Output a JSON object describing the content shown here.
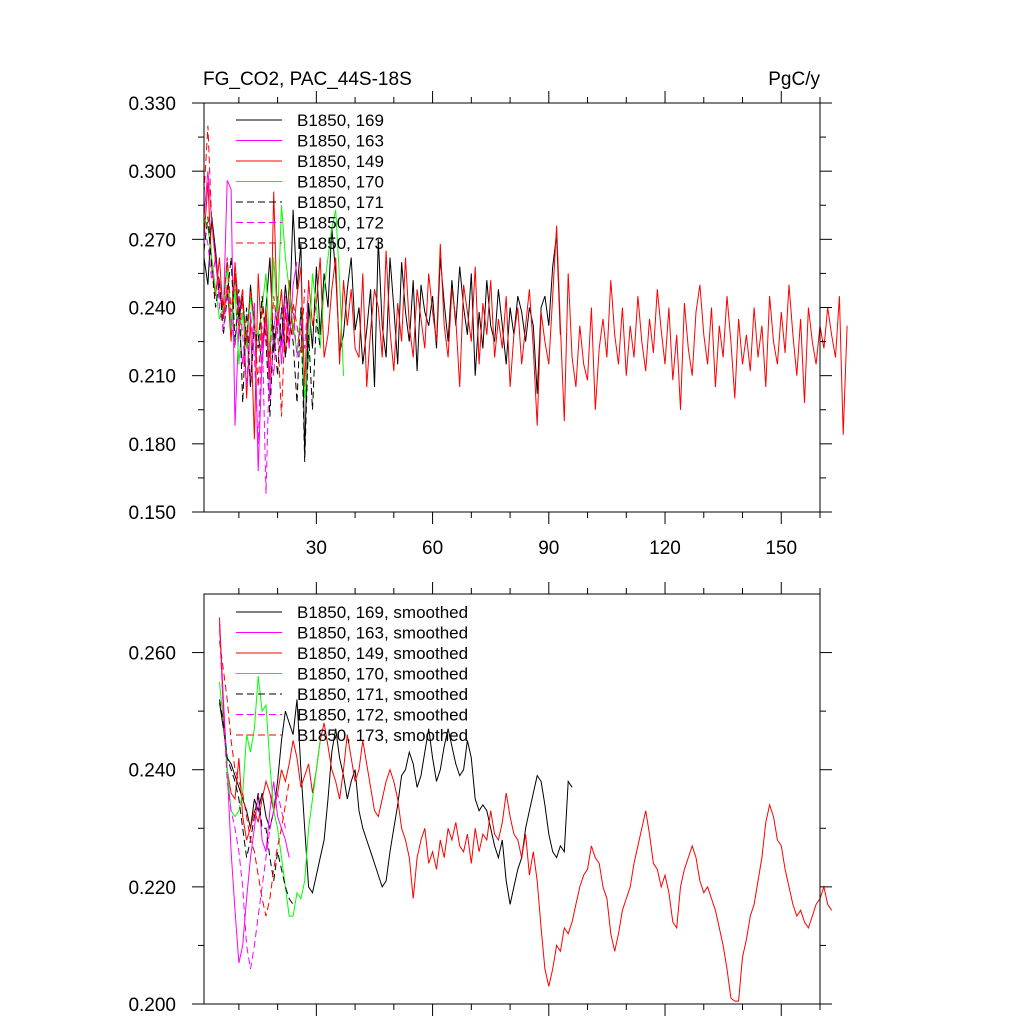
{
  "chart_data": [
    {
      "type": "line",
      "title": "FG_CO2, PAC_44S-18S",
      "units": "PgC/y",
      "xlim": [
        1,
        160
      ],
      "ylim": [
        0.15,
        0.33
      ],
      "xticks": [
        30,
        60,
        90,
        120,
        150
      ],
      "xtick_labels": [
        "30",
        "60",
        "90",
        "120",
        "150"
      ],
      "yticks": [
        0.15,
        0.18,
        0.21,
        0.24,
        0.27,
        0.3,
        0.33
      ],
      "ytick_labels": [
        "0.150",
        "0.180",
        "0.210",
        "0.240",
        "0.270",
        "0.300",
        "0.330"
      ],
      "legend_position": "top-left",
      "series": [
        {
          "name": "B1850, 169",
          "color": "#000000",
          "dash": "solid",
          "start": 1,
          "values": [
            0.262,
            0.25,
            0.28,
            0.265,
            0.245,
            0.24,
            0.26,
            0.23,
            0.255,
            0.235,
            0.245,
            0.222,
            0.25,
            0.23,
            0.228,
            0.215,
            0.24,
            0.262,
            0.22,
            0.238,
            0.225,
            0.25,
            0.232,
            0.283,
            0.248,
            0.268,
            0.175,
            0.242,
            0.222,
            0.258,
            0.228,
            0.255,
            0.24,
            0.275,
            0.255,
            0.22,
            0.228,
            0.248,
            0.262,
            0.23,
            0.24,
            0.215,
            0.23,
            0.248,
            0.205,
            0.27,
            0.232,
            0.218,
            0.262,
            0.24,
            0.215,
            0.26,
            0.238,
            0.225,
            0.252,
            0.212,
            0.25,
            0.238,
            0.232,
            0.245,
            0.222,
            0.262,
            0.242,
            0.225,
            0.252,
            0.232,
            0.258,
            0.24,
            0.228,
            0.255,
            0.21,
            0.238,
            0.222,
            0.252,
            0.232,
            0.225,
            0.248,
            0.232,
            0.215,
            0.24,
            0.228,
            0.245,
            0.238,
            0.225,
            0.24,
            0.232,
            0.202,
            0.24,
            0.245,
            0.232,
            0.258,
            0.272,
            0.228
          ]
        },
        {
          "name": "B1850, 163",
          "color": "#ff00ff",
          "dash": "solid",
          "start": 1,
          "values": [
            0.28,
            0.3,
            0.278,
            0.26,
            0.245,
            0.238,
            0.296,
            0.292,
            0.188,
            0.232,
            0.215,
            0.23,
            0.205,
            0.242,
            0.168,
            0.218,
            0.235,
            0.2,
            0.23,
            0.245,
            0.215,
            0.24,
            0.222,
            0.25,
            0.26
          ]
        },
        {
          "name": "B1850, 149",
          "color": "#ff0000",
          "dash": "solid",
          "start": 1,
          "values": [
            0.27,
            0.295,
            0.258,
            0.245,
            0.262,
            0.235,
            0.25,
            0.225,
            0.26,
            0.238,
            0.248,
            0.2,
            0.235,
            0.182,
            0.255,
            0.222,
            0.24,
            0.208,
            0.291,
            0.232,
            0.248,
            0.218,
            0.252,
            0.228,
            0.245,
            0.258,
            0.205,
            0.252,
            0.232,
            0.242,
            0.262,
            0.218,
            0.228,
            0.248,
            0.262,
            0.215,
            0.252,
            0.232,
            0.248,
            0.222,
            0.218,
            0.255,
            0.205,
            0.23,
            0.248,
            0.24,
            0.218,
            0.265,
            0.23,
            0.212,
            0.242,
            0.225,
            0.262,
            0.232,
            0.218,
            0.248,
            0.235,
            0.222,
            0.255,
            0.238,
            0.225,
            0.268,
            0.232,
            0.218,
            0.248,
            0.235,
            0.205,
            0.25,
            0.238,
            0.225,
            0.258,
            0.215,
            0.242,
            0.228,
            0.252,
            0.218,
            0.235,
            0.222,
            0.245,
            0.205,
            0.228,
            0.24,
            0.215,
            0.232,
            0.248,
            0.222,
            0.188,
            0.238,
            0.225,
            0.215,
            0.245,
            0.276,
            0.232,
            0.19,
            0.255,
            0.218,
            0.205,
            0.232,
            0.215,
            0.208,
            0.24,
            0.195,
            0.222,
            0.235,
            0.218,
            0.252,
            0.228,
            0.215,
            0.24,
            0.21,
            0.232,
            0.218,
            0.245,
            0.225,
            0.212,
            0.235,
            0.22,
            0.248,
            0.23,
            0.215,
            0.24,
            0.208,
            0.228,
            0.195,
            0.242,
            0.222,
            0.21,
            0.238,
            0.25,
            0.228,
            0.215,
            0.24,
            0.205,
            0.232,
            0.218,
            0.245,
            0.225,
            0.2,
            0.235,
            0.215,
            0.228,
            0.212,
            0.24,
            0.218,
            0.232,
            0.205,
            0.245,
            0.225,
            0.215,
            0.238,
            0.22,
            0.25,
            0.228,
            0.21,
            0.235,
            0.198,
            0.24,
            0.225,
            0.215,
            0.232,
            0.222,
            0.24,
            0.228,
            0.218,
            0.245,
            0.184,
            0.232
          ]
        },
        {
          "name": "B1850, 170",
          "color": "#00ff00",
          "dash": "solid",
          "start": 1,
          "values": [
            0.28,
            0.275,
            0.262,
            0.248,
            0.235,
            0.24,
            0.258,
            0.23,
            0.248,
            0.215,
            0.238,
            0.222,
            0.245,
            0.23,
            0.228,
            0.24,
            0.255,
            0.218,
            0.262,
            0.235,
            0.285,
            0.262,
            0.248,
            0.232,
            0.22,
            0.238,
            0.2,
            0.218,
            0.255,
            0.24,
            0.222,
            0.248,
            0.262,
            0.275,
            0.283,
            0.252,
            0.21
          ]
        },
        {
          "name": "B1850, 171",
          "color": "#000000",
          "dash": "dashed",
          "start": 1,
          "values": [
            0.265,
            0.28,
            0.258,
            0.24,
            0.252,
            0.228,
            0.245,
            0.262,
            0.225,
            0.248,
            0.198,
            0.24,
            0.205,
            0.232,
            0.222,
            0.245,
            0.225,
            0.192,
            0.232,
            0.21,
            0.24,
            0.218,
            0.235,
            0.225,
            0.198,
            0.24,
            0.172,
            0.228,
            0.195,
            0.235,
            0.222
          ]
        },
        {
          "name": "B1850, 172",
          "color": "#ff00ff",
          "dash": "dashed",
          "start": 1,
          "values": [
            0.275,
            0.268,
            0.252,
            0.262,
            0.24,
            0.23,
            0.248,
            0.235,
            0.222,
            0.245,
            0.228,
            0.205,
            0.238,
            0.218,
            0.18,
            0.232,
            0.158,
            0.225,
            0.21,
            0.238,
            0.222,
            0.245,
            0.228,
            0.24,
            0.218,
            0.235,
            0.222,
            0.25
          ]
        },
        {
          "name": "B1850, 173",
          "color": "#ff0000",
          "dash": "dashed",
          "start": 1,
          "values": [
            0.29,
            0.32,
            0.278,
            0.26,
            0.252,
            0.24,
            0.262,
            0.238,
            0.255,
            0.23,
            0.242,
            0.225,
            0.248,
            0.235,
            0.205,
            0.24,
            0.228,
            0.218,
            0.245,
            0.23,
            0.192,
            0.238,
            0.225,
            0.242,
            0.232,
            0.22,
            0.248
          ]
        }
      ],
      "legend": [
        "B1850, 169",
        "B1850, 163",
        "B1850, 149",
        "B1850, 170",
        "B1850, 171",
        "B1850, 172",
        "B1850, 173"
      ]
    },
    {
      "type": "line",
      "xlim": [
        1,
        160
      ],
      "ylim": [
        0.2,
        0.27
      ],
      "xticks": [
        30,
        60,
        90,
        120,
        150
      ],
      "yticks": [
        0.2,
        0.22,
        0.24,
        0.26
      ],
      "ytick_labels": [
        "0.200",
        "0.220",
        "0.240",
        "0.260"
      ],
      "legend_position": "top-left",
      "series": [
        {
          "name": "B1850, 169, smoothed",
          "color": "#000000",
          "dash": "solid",
          "start": 5,
          "values": [
            0.2515,
            0.247,
            0.242,
            0.241,
            0.239,
            0.237,
            0.235,
            0.233,
            0.23,
            0.235,
            0.233,
            0.236,
            0.232,
            0.23,
            0.233,
            0.238,
            0.245,
            0.25,
            0.248,
            0.246,
            0.252,
            0.24,
            0.23,
            0.22,
            0.219,
            0.222,
            0.225,
            0.228,
            0.235,
            0.243,
            0.247,
            0.242,
            0.239,
            0.235,
            0.238,
            0.24,
            0.233,
            0.23,
            0.228,
            0.226,
            0.224,
            0.222,
            0.22,
            0.221,
            0.226,
            0.23,
            0.234,
            0.239,
            0.24,
            0.243,
            0.241,
            0.237,
            0.239,
            0.243,
            0.247,
            0.242,
            0.238,
            0.24,
            0.244,
            0.247,
            0.244,
            0.241,
            0.239,
            0.24,
            0.245,
            0.242,
            0.235,
            0.233,
            0.234,
            0.233,
            0.23,
            0.227,
            0.225,
            0.228,
            0.221,
            0.217,
            0.22,
            0.223,
            0.225,
            0.23,
            0.233,
            0.236,
            0.239,
            0.238,
            0.234,
            0.229,
            0.226,
            0.225,
            0.227,
            0.226,
            0.238,
            0.237
          ]
        },
        {
          "name": "B1850, 163, smoothed",
          "color": "#ff00ff",
          "dash": "solid",
          "start": 5,
          "values": [
            0.265,
            0.252,
            0.24,
            0.226,
            0.216,
            0.207,
            0.21,
            0.218,
            0.225,
            0.23,
            0.236,
            0.228,
            0.226,
            0.233,
            0.238,
            0.232,
            0.23,
            0.228,
            0.225
          ]
        },
        {
          "name": "B1850, 149, smoothed",
          "color": "#ff0000",
          "dash": "solid",
          "start": 5,
          "values": [
            0.266,
            0.25,
            0.24,
            0.236,
            0.235,
            0.242,
            0.232,
            0.228,
            0.23,
            0.233,
            0.231,
            0.235,
            0.238,
            0.236,
            0.233,
            0.236,
            0.24,
            0.238,
            0.241,
            0.245,
            0.242,
            0.237,
            0.239,
            0.241,
            0.236,
            0.24,
            0.245,
            0.248,
            0.244,
            0.24,
            0.238,
            0.235,
            0.24,
            0.246,
            0.242,
            0.238,
            0.24,
            0.245,
            0.241,
            0.237,
            0.233,
            0.232,
            0.235,
            0.238,
            0.24,
            0.238,
            0.235,
            0.23,
            0.228,
            0.225,
            0.218,
            0.225,
            0.228,
            0.23,
            0.224,
            0.226,
            0.223,
            0.228,
            0.225,
            0.23,
            0.228,
            0.231,
            0.227,
            0.226,
            0.229,
            0.224,
            0.23,
            0.226,
            0.229,
            0.228,
            0.233,
            0.229,
            0.228,
            0.231,
            0.236,
            0.232,
            0.229,
            0.228,
            0.225,
            0.229,
            0.222,
            0.226,
            0.221,
            0.213,
            0.206,
            0.203,
            0.206,
            0.21,
            0.209,
            0.213,
            0.212,
            0.214,
            0.217,
            0.22,
            0.222,
            0.223,
            0.227,
            0.225,
            0.224,
            0.22,
            0.218,
            0.212,
            0.209,
            0.212,
            0.216,
            0.218,
            0.22,
            0.224,
            0.227,
            0.23,
            0.233,
            0.229,
            0.224,
            0.223,
            0.22,
            0.222,
            0.219,
            0.214,
            0.213,
            0.22,
            0.223,
            0.225,
            0.227,
            0.225,
            0.221,
            0.219,
            0.22,
            0.218,
            0.216,
            0.213,
            0.21,
            0.206,
            0.201,
            0.2005,
            0.2005,
            0.208,
            0.211,
            0.215,
            0.217,
            0.221,
            0.225,
            0.231,
            0.234,
            0.232,
            0.228,
            0.227,
            0.223,
            0.22,
            0.217,
            0.215,
            0.216,
            0.214,
            0.213,
            0.215,
            0.217,
            0.218,
            0.22,
            0.217,
            0.216
          ]
        },
        {
          "name": "B1850, 170, smoothed",
          "color": "#00ff00",
          "dash": "solid",
          "start": 5,
          "values": [
            0.255,
            0.248,
            0.24,
            0.233,
            0.232,
            0.233,
            0.236,
            0.246,
            0.243,
            0.247,
            0.256,
            0.25,
            0.251,
            0.241,
            0.233,
            0.23,
            0.225,
            0.22,
            0.215,
            0.215,
            0.219,
            0.218,
            0.221,
            0.23,
            0.235,
            0.24,
            0.245
          ]
        },
        {
          "name": "B1850, 171, smoothed",
          "color": "#000000",
          "dash": "dashed",
          "start": 5,
          "values": [
            0.252,
            0.248,
            0.242,
            0.24,
            0.238,
            0.235,
            0.23,
            0.225,
            0.228,
            0.232,
            0.236,
            0.23,
            0.23,
            0.225,
            0.221,
            0.226,
            0.223,
            0.22,
            0.218,
            0.217
          ]
        },
        {
          "name": "B1850, 172, smoothed",
          "color": "#ff00ff",
          "dash": "dashed",
          "start": 5,
          "values": [
            0.264,
            0.25,
            0.238,
            0.233,
            0.23,
            0.226,
            0.22,
            0.21,
            0.206,
            0.21,
            0.215,
            0.22,
            0.225,
            0.23,
            0.233,
            0.236,
            0.233,
            0.23
          ]
        },
        {
          "name": "B1850, 173, smoothed",
          "color": "#ff0000",
          "dash": "dashed",
          "start": 5,
          "values": [
            0.262,
            0.257,
            0.252,
            0.245,
            0.24,
            0.238,
            0.236,
            0.232,
            0.228,
            0.226,
            0.222,
            0.218,
            0.215,
            0.218,
            0.223,
            0.227,
            0.23,
            0.234,
            0.238
          ]
        }
      ],
      "legend": [
        "B1850, 169, smoothed",
        "B1850, 163, smoothed",
        "B1850, 149, smoothed",
        "B1850, 170, smoothed",
        "B1850, 171, smoothed",
        "B1850, 172, smoothed",
        "B1850, 173, smoothed"
      ]
    }
  ]
}
